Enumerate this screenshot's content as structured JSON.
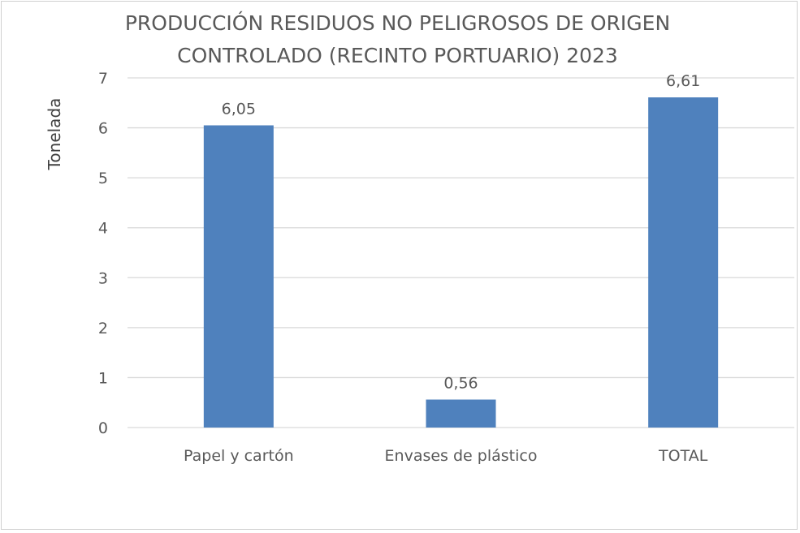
{
  "chart_data": {
    "type": "bar",
    "title": [
      "PRODUCCIÓN RESIDUOS NO PELIGROSOS DE ORIGEN",
      "CONTROLADO (RECINTO PORTUARIO) 2023"
    ],
    "xlabel": "",
    "ylabel": "Tonelada",
    "categories": [
      "Papel y cartón",
      "Envases de plástico",
      "TOTAL"
    ],
    "values": [
      6.05,
      0.56,
      6.61
    ],
    "data_labels": [
      "6,05",
      "0,56",
      "6,61"
    ],
    "ylim": [
      0,
      7
    ],
    "yticks": [
      0,
      1,
      2,
      3,
      4,
      5,
      6,
      7
    ],
    "grid": true,
    "legend": "none",
    "colors": {
      "bar": "#4f81bd",
      "grid": "#d9d9d9",
      "text": "#595959",
      "title": "#595959"
    }
  }
}
